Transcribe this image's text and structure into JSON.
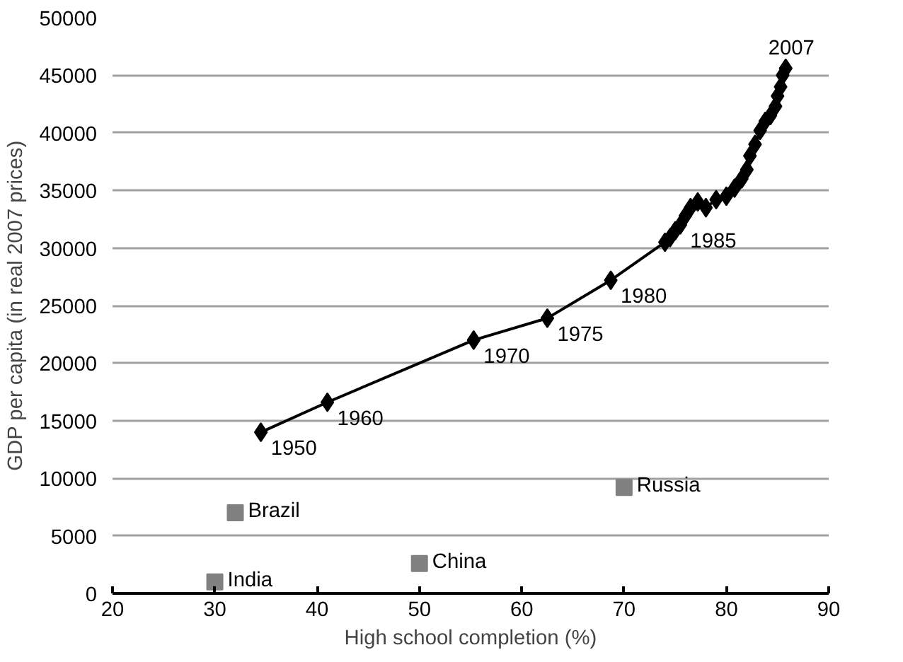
{
  "chart_data": {
    "type": "line",
    "xlabel": "High school completion (%)",
    "ylabel": "GDP per capita (in real 2007 prices)",
    "xlim": [
      20,
      90
    ],
    "xticks": [
      20,
      30,
      40,
      50,
      60,
      70,
      80,
      90
    ],
    "ylim": [
      0,
      50000
    ],
    "yticks": [
      0,
      5000,
      10000,
      15000,
      20000,
      25000,
      30000,
      35000,
      40000,
      45000,
      50000
    ],
    "grid": "y",
    "marker": "diamond",
    "line_style": "solid",
    "series": [
      {
        "color": "#000000",
        "x": [
          34.5,
          41,
          55.3,
          62.5,
          68.7,
          74,
          74.5,
          75,
          75.5,
          76,
          76.5,
          77.2,
          78,
          79,
          80,
          80.8,
          81.5,
          82,
          82.3,
          82.8,
          83.3,
          83.8,
          84.3,
          84.8,
          85,
          85.3,
          85.5,
          85.8
        ],
        "values": [
          14000,
          16600,
          22000,
          23900,
          27200,
          30500,
          30900,
          31500,
          32000,
          32800,
          33500,
          34000,
          33500,
          34200,
          34500,
          35200,
          36000,
          36800,
          38000,
          39000,
          40200,
          41000,
          41500,
          42300,
          43200,
          44000,
          45000,
          45600
        ]
      },
      {
        "type": "scatter",
        "marker": "square",
        "name": "Brazil",
        "color": "#808080",
        "x": [
          32
        ],
        "values": [
          7000
        ]
      },
      {
        "type": "scatter",
        "marker": "square",
        "name": "India",
        "color": "#808080",
        "x": [
          30
        ],
        "values": [
          1000
        ]
      },
      {
        "type": "scatter",
        "marker": "square",
        "name": "China",
        "color": "#808080",
        "x": [
          50
        ],
        "values": [
          2600
        ]
      },
      {
        "type": "scatter",
        "marker": "square",
        "name": "Russia",
        "color": "#808080",
        "x": [
          70
        ],
        "values": [
          9200
        ]
      }
    ],
    "annotations": [
      {
        "text": "1950",
        "x": 34.5,
        "y": 14000
      },
      {
        "text": "1960",
        "x": 41,
        "y": 16600
      },
      {
        "text": "1970",
        "x": 55.3,
        "y": 22000
      },
      {
        "text": "1975",
        "x": 62.5,
        "y": 23900
      },
      {
        "text": "1980",
        "x": 68.7,
        "y": 27200
      },
      {
        "text": "1985",
        "x": 75.5,
        "y": 32000
      },
      {
        "text": "2007",
        "x": 85.8,
        "y": 45600
      }
    ]
  }
}
